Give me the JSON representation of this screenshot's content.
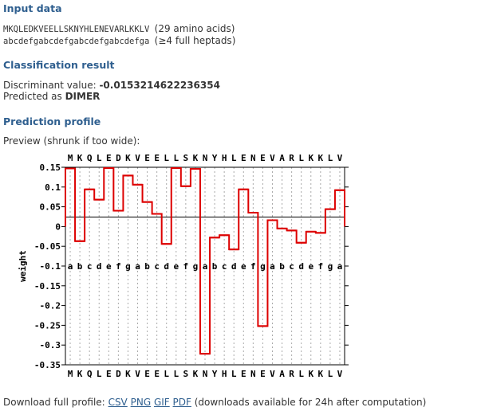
{
  "input": {
    "heading": "Input data",
    "sequence": "MKQLEDKVEELLSKNYHLENEVARLKKLV",
    "sequence_note": "(29 amino acids)",
    "heptads": "abcdefgabcdefgabcdefgabcdefga",
    "heptads_note": "(≥4 full heptads)"
  },
  "result": {
    "heading": "Classification result",
    "discriminant_label": "Discriminant value:",
    "discriminant_value": "-0.0153214622236354",
    "predicted_label": "Predicted as",
    "predicted_value": "DIMER"
  },
  "profile": {
    "heading": "Prediction profile",
    "preview_note": "Preview (shrunk if too wide):"
  },
  "download": {
    "label": "Download full profile:",
    "links": [
      "CSV",
      "PNG",
      "GIF",
      "PDF"
    ],
    "note": "(downloads available for 24h after computation)"
  },
  "chart_data": {
    "type": "line",
    "step": true,
    "residues": [
      "M",
      "K",
      "Q",
      "L",
      "E",
      "D",
      "K",
      "V",
      "E",
      "E",
      "L",
      "L",
      "S",
      "K",
      "N",
      "Y",
      "H",
      "L",
      "E",
      "N",
      "E",
      "V",
      "A",
      "R",
      "L",
      "K",
      "K",
      "L",
      "V"
    ],
    "heptad_positions": [
      "a",
      "b",
      "c",
      "d",
      "e",
      "f",
      "g",
      "a",
      "b",
      "c",
      "d",
      "e",
      "f",
      "g",
      "a",
      "b",
      "c",
      "d",
      "e",
      "f",
      "g",
      "a",
      "b",
      "c",
      "d",
      "e",
      "f",
      "g",
      "a"
    ],
    "values": [
      0.147,
      -0.037,
      0.094,
      0.068,
      0.148,
      0.04,
      0.129,
      0.106,
      0.062,
      0.032,
      -0.044,
      0.148,
      0.102,
      0.146,
      -0.322,
      -0.028,
      -0.022,
      -0.058,
      0.094,
      0.035,
      -0.252,
      0.016,
      -0.005,
      -0.01,
      -0.041,
      -0.013,
      -0.016,
      0.044,
      0.092
    ],
    "reference_line": 0.024,
    "ylabel": "weight",
    "ylim": [
      -0.35,
      0.15
    ],
    "yticks": [
      "0.15",
      "0.1",
      "0.05",
      "0",
      "-0.05",
      "-0.1",
      "-0.15",
      "-0.2",
      "-0.25",
      "-0.3",
      "-0.35"
    ],
    "grid": "vertical-dotted",
    "series_color": "#dd0000"
  }
}
